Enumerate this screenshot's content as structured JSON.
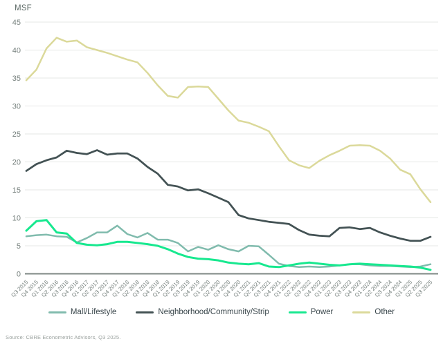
{
  "chart_data": {
    "type": "line",
    "title": "",
    "unit_label": "MSF",
    "xlabel": "",
    "ylabel": "MSF",
    "ylim": [
      0,
      45
    ],
    "ytick_step": 5,
    "grid": true,
    "legend_position": "bottom",
    "categories": [
      "Q3 2015",
      "Q4 2015",
      "Q1 2016",
      "Q2 2016",
      "Q3 2016",
      "Q4 2016",
      "Q1 2017",
      "Q2 2017",
      "Q3 2017",
      "Q4 2017",
      "Q1 2018",
      "Q2 2018",
      "Q3 2018",
      "Q4 2018",
      "Q1 2019",
      "Q2 2019",
      "Q3 2019",
      "Q4 2019",
      "Q1 2020",
      "Q2 2020",
      "Q3 2020",
      "Q4 2020",
      "Q1 2021",
      "Q2 2021",
      "Q3 2021",
      "Q4 2021",
      "Q1 2022",
      "Q2 2022",
      "Q3 2022",
      "Q4 2022",
      "Q1 2023",
      "Q2 2023",
      "Q3 2023",
      "Q4 2023",
      "Q1 2024",
      "Q2 2024",
      "Q3 2024",
      "Q4 2024",
      "Q1 2025",
      "Q2 2025",
      "Q3 2025"
    ],
    "series": [
      {
        "name": "Mall/Lifestyle",
        "color": "#80BBAD",
        "values": [
          6.7,
          6.9,
          7.0,
          6.7,
          6.6,
          5.6,
          6.4,
          7.4,
          7.4,
          8.6,
          7.1,
          6.5,
          7.3,
          6.1,
          6.1,
          5.5,
          4.0,
          4.8,
          4.3,
          5.1,
          4.4,
          4.0,
          5.0,
          4.9,
          3.4,
          1.8,
          1.4,
          1.2,
          1.3,
          1.2,
          1.3,
          1.5,
          1.7,
          1.7,
          1.5,
          1.4,
          1.4,
          1.3,
          1.2,
          1.3,
          1.7
        ]
      },
      {
        "name": "Neighborhood/Community/Strip",
        "color": "#435254",
        "values": [
          18.4,
          19.6,
          20.3,
          20.8,
          22.0,
          21.6,
          21.4,
          22.1,
          21.3,
          21.5,
          21.5,
          20.6,
          19.1,
          17.9,
          15.9,
          15.6,
          14.9,
          15.1,
          14.4,
          13.6,
          12.8,
          10.5,
          9.9,
          9.6,
          9.3,
          9.1,
          8.9,
          7.8,
          7.0,
          6.8,
          6.7,
          8.2,
          8.3,
          8.0,
          8.2,
          7.4,
          6.8,
          6.3,
          5.9,
          5.9,
          6.6
        ]
      },
      {
        "name": "Power",
        "color": "#17E88F",
        "values": [
          7.7,
          9.4,
          9.6,
          7.4,
          7.2,
          5.5,
          5.2,
          5.1,
          5.3,
          5.7,
          5.7,
          5.5,
          5.3,
          5.0,
          4.4,
          3.6,
          3.0,
          2.7,
          2.6,
          2.4,
          2.0,
          1.8,
          1.7,
          1.9,
          1.3,
          1.2,
          1.5,
          1.8,
          2.0,
          1.8,
          1.6,
          1.5,
          1.7,
          1.8,
          1.7,
          1.6,
          1.5,
          1.4,
          1.3,
          1.1,
          0.7
        ]
      },
      {
        "name": "Other",
        "color": "#DBD99A",
        "values": [
          34.6,
          36.5,
          40.3,
          42.2,
          41.5,
          41.7,
          40.5,
          40.0,
          39.5,
          38.9,
          38.3,
          37.8,
          35.9,
          33.7,
          31.8,
          31.5,
          33.4,
          33.5,
          33.4,
          31.3,
          29.2,
          27.4,
          27.0,
          26.3,
          25.5,
          22.8,
          20.3,
          19.4,
          18.9,
          20.2,
          21.2,
          22.0,
          22.9,
          23.0,
          22.9,
          22.0,
          20.6,
          18.6,
          17.8,
          15.1,
          12.8
        ]
      }
    ]
  },
  "source": "Source: CBRE Econometric Advisors, Q3 2025.",
  "colors": {
    "grid": "#e5e7e5",
    "zero_line": "#7f8885",
    "tick_label": "#76807d",
    "legend_text": "#39464b",
    "source_text": "#9aa19e"
  }
}
